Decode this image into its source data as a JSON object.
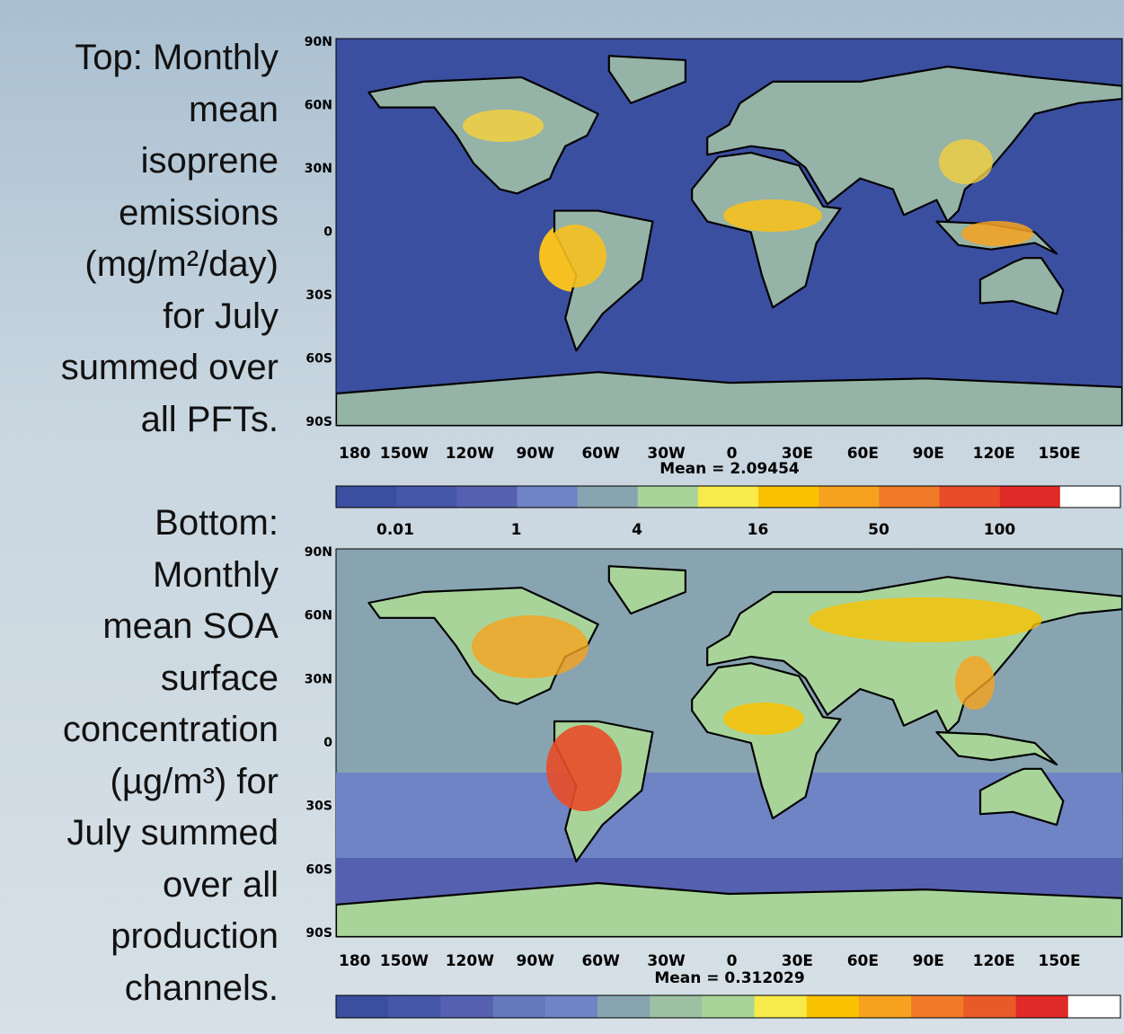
{
  "captions": {
    "top": [
      "Top: Monthly",
      "mean",
      "isoprene",
      "emissions",
      "(mg/m²/day)",
      "for July",
      "summed over",
      "all PFTs."
    ],
    "bottom": [
      "Bottom:",
      "Monthly",
      "mean SOA",
      "surface",
      "concentration",
      "(µg/m³) for",
      "July summed",
      "over all",
      "production",
      "channels."
    ]
  },
  "maps": [
    {
      "lat_labels": [
        "90N",
        "60N",
        "30N",
        "0",
        "30S",
        "60S",
        "90S"
      ],
      "lon_labels": [
        "180",
        "150W",
        "120W",
        "90W",
        "60W",
        "30W",
        "0",
        "30E",
        "60E",
        "90E",
        "120E",
        "150E"
      ],
      "mean": "Mean = 2.09454",
      "colorbar": {
        "colors": [
          "#3b4fa1",
          "#4656a8",
          "#5560b0",
          "#6f84c4",
          "#88a4b0",
          "#a8d49a",
          "#f7ea4a",
          "#f9c100",
          "#f6a21e",
          "#f07a28",
          "#e84c28",
          "#e02a28",
          "#ffffff"
        ],
        "labels": [
          "0.01",
          "1",
          "4",
          "16",
          "50",
          "100"
        ]
      }
    },
    {
      "lat_labels": [
        "90N",
        "60N",
        "30N",
        "0",
        "30S",
        "60S",
        "90S"
      ],
      "lon_labels": [
        "180",
        "150W",
        "120W",
        "90W",
        "60W",
        "30W",
        "0",
        "30E",
        "60E",
        "90E",
        "120E",
        "150E"
      ],
      "mean": "Mean = 0.312029",
      "colorbar": {
        "colors": [
          "#3b4fa1",
          "#4656a8",
          "#5560b0",
          "#6478bc",
          "#6f84c4",
          "#88a4b0",
          "#9ec0a2",
          "#a8d49a",
          "#f7ea4a",
          "#f9c100",
          "#f6a21e",
          "#f07a28",
          "#ea5a28",
          "#e02a28",
          "#ffffff"
        ],
        "labels": []
      }
    }
  ]
}
